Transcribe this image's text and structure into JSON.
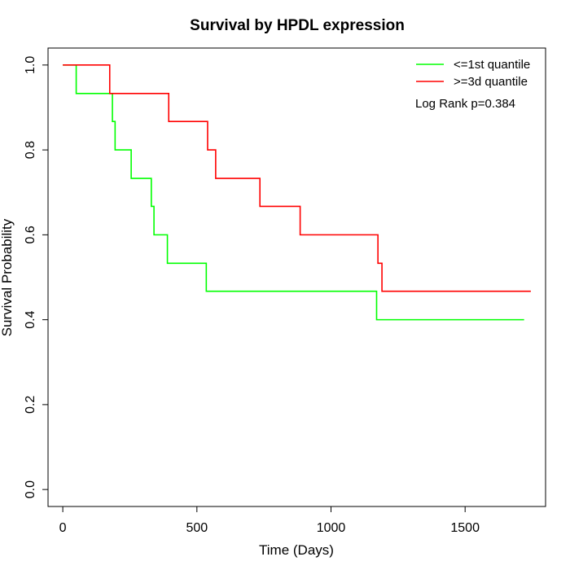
{
  "chart_data": {
    "type": "line",
    "title": "Survival by HPDL expression",
    "xlabel": "Time (Days)",
    "ylabel": "Survival Probability",
    "xlim": [
      -55,
      1800
    ],
    "ylim": [
      -0.04,
      1.04
    ],
    "x_ticks": [
      0,
      500,
      1000,
      1500
    ],
    "x_tick_labels": [
      "0",
      "500",
      "1000",
      "1500"
    ],
    "y_ticks": [
      0.0,
      0.2,
      0.4,
      0.6,
      0.8,
      1.0
    ],
    "y_tick_labels": [
      "0.0",
      "0.2",
      "0.4",
      "0.6",
      "0.8",
      "1.0"
    ],
    "grid": false,
    "legend_position": "top-right",
    "annotation": "Log Rank p=0.384",
    "series": [
      {
        "name": "<=1st quantile",
        "color": "#00ff00",
        "step": true,
        "x": [
          0,
          50,
          185,
          195,
          255,
          330,
          340,
          390,
          535,
          1170,
          1720
        ],
        "y": [
          1.0,
          0.933,
          0.867,
          0.8,
          0.733,
          0.667,
          0.6,
          0.533,
          0.467,
          0.4,
          0.4
        ]
      },
      {
        "name": ">=3d quantile",
        "color": "#ff0000",
        "step": true,
        "x": [
          0,
          175,
          395,
          540,
          570,
          735,
          885,
          1175,
          1190,
          1745
        ],
        "y": [
          1.0,
          0.933,
          0.867,
          0.8,
          0.733,
          0.667,
          0.6,
          0.533,
          0.467,
          0.467
        ]
      }
    ]
  }
}
